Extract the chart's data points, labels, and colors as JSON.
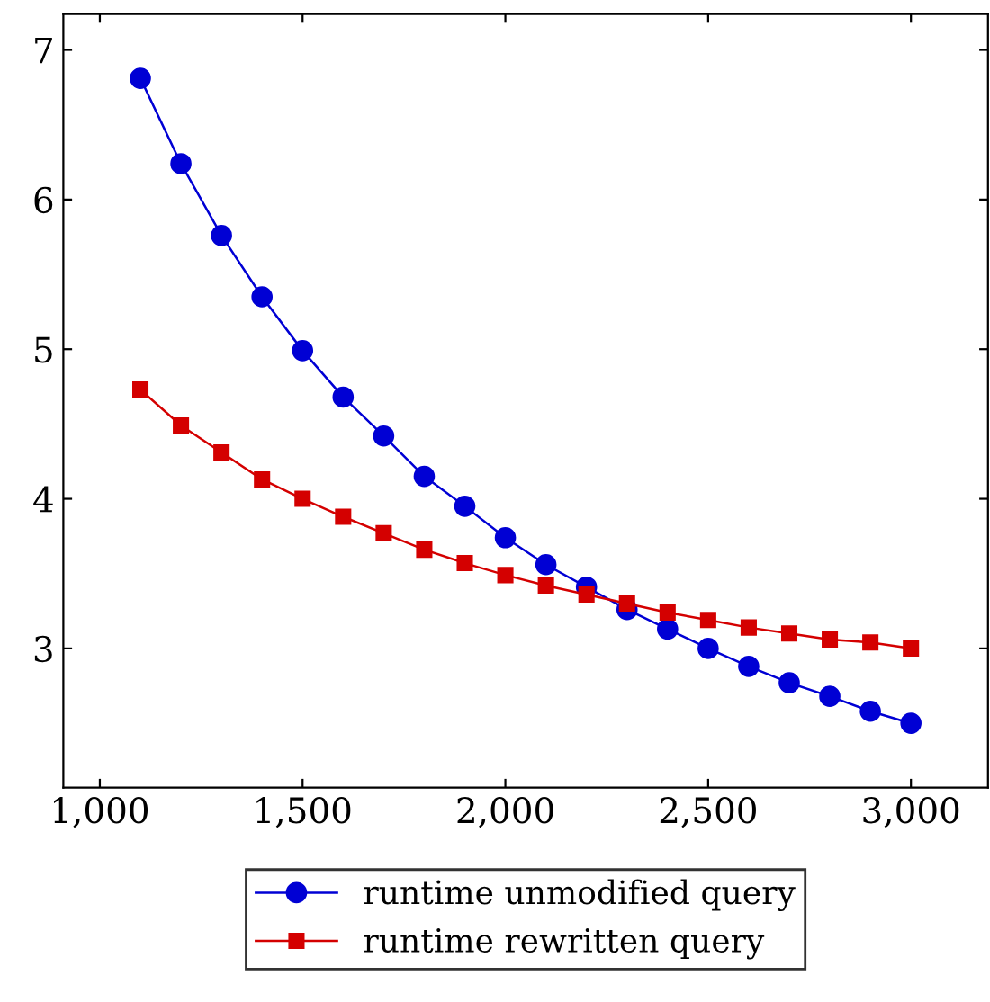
{
  "chart_data": {
    "type": "line",
    "x": [
      1100,
      1200,
      1300,
      1400,
      1500,
      1600,
      1700,
      1800,
      1900,
      2000,
      2100,
      2200,
      2300,
      2400,
      2500,
      2600,
      2700,
      2800,
      2900,
      3000
    ],
    "series": [
      {
        "name": "runtime unmodified query",
        "color": "#0000d4",
        "marker": "circle",
        "values": [
          6.81,
          6.24,
          5.76,
          5.35,
          4.99,
          4.68,
          4.42,
          4.15,
          3.95,
          3.74,
          3.56,
          3.41,
          3.26,
          3.13,
          3.0,
          2.88,
          2.77,
          2.68,
          2.58,
          2.5
        ]
      },
      {
        "name": "runtime rewritten query",
        "color": "#d40000",
        "marker": "square",
        "values": [
          4.73,
          4.49,
          4.31,
          4.13,
          4.0,
          3.88,
          3.77,
          3.66,
          3.57,
          3.49,
          3.42,
          3.36,
          3.3,
          3.24,
          3.19,
          3.14,
          3.1,
          3.06,
          3.04,
          3.0
        ]
      }
    ],
    "xlim": [
      910,
      3190
    ],
    "ylim": [
      2.07,
      7.24
    ],
    "xticks": [
      {
        "value": 1000,
        "label": "1,000"
      },
      {
        "value": 1500,
        "label": "1,500"
      },
      {
        "value": 2000,
        "label": "2,000"
      },
      {
        "value": 2500,
        "label": "2,500"
      },
      {
        "value": 3000,
        "label": "3,000"
      }
    ],
    "yticks": [
      3,
      4,
      5,
      6,
      7
    ],
    "legend": "bottom",
    "grid": false,
    "line_style": "solid"
  }
}
